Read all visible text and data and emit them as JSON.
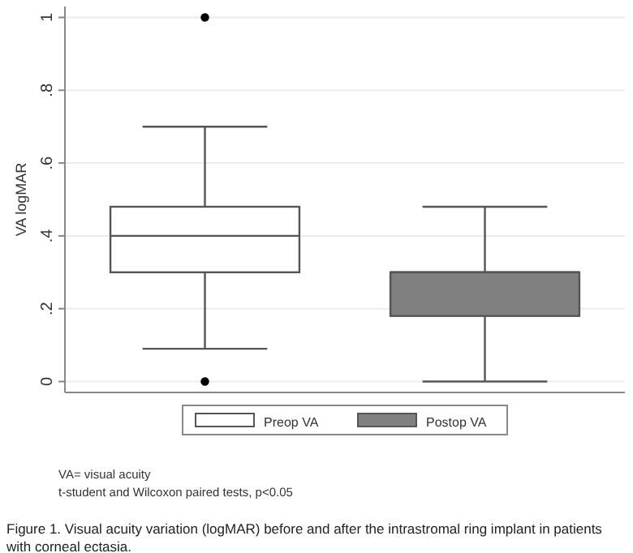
{
  "chart_data": {
    "type": "box",
    "ylabel": "VA logMAR",
    "categories": [
      null,
      null
    ],
    "series": [
      {
        "name": "Preop VA",
        "color": "#ffffff",
        "boxes": [
          {
            "low": 0.09,
            "q1": 0.3,
            "median": 0.4,
            "q3": 0.48,
            "high": 0.7,
            "outliers": [
              1,
              0
            ]
          },
          null
        ]
      },
      {
        "name": "Postop VA",
        "color": "#808080",
        "boxes": [
          null,
          {
            "low": 0,
            "q1": 0.18,
            "median": 0.3,
            "q3": 0.3,
            "high": 0.48
          }
        ]
      }
    ],
    "ylim": [
      -0.03,
      1.03
    ],
    "yticks": [
      {
        "value": 0,
        "label": "0"
      },
      {
        "value": 0.2,
        "label": ".2"
      },
      {
        "value": 0.4,
        "label": ".4"
      },
      {
        "value": 0.6,
        "label": ".6"
      },
      {
        "value": 0.8,
        "label": ".8"
      },
      {
        "value": 1,
        "label": "1"
      }
    ],
    "grid": "y",
    "legend": "bottom",
    "annotations": [
      "VA= visual acuity",
      "t-student and Wilcoxon paired tests, p<0.05",
      "Figure 1. Visual acuity variation (logMAR) before and after the intrastromal ring implant in patients with corneal ectasia."
    ]
  }
}
